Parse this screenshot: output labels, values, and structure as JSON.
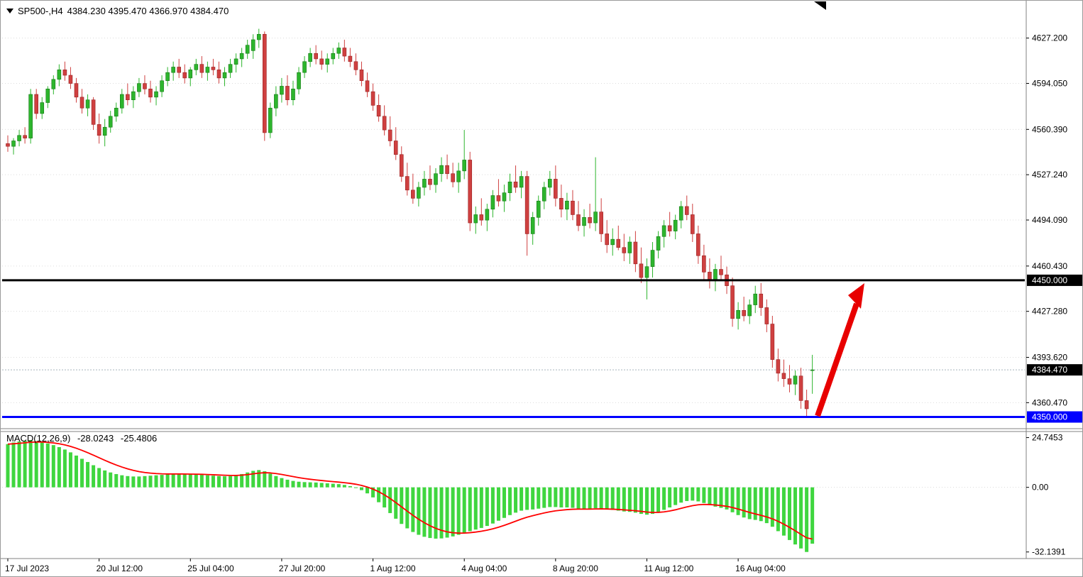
{
  "header": {
    "title": "SP500-,H4",
    "ohlc_text": "4384.230 4395.470 4366.970 4384.470"
  },
  "indicator": {
    "name": "MACD(12,26,9)",
    "main_value": "-28.0243",
    "signal_value": "-25.4806"
  },
  "colors": {
    "up_candle": "#2db52d",
    "up_candle_border": "#157a15",
    "down_candle": "#cf4040",
    "down_candle_border": "#992222",
    "macd_histogram": "#3fd63f",
    "macd_signal": "#ff0000",
    "resistance_line": "#000000",
    "support_line": "#0000ff",
    "current_price_line": "#a8b4bc",
    "arrow": "#e80000",
    "grid": "#dcdcdc",
    "axis_border": "#808080",
    "tag_text": "#ffffff"
  },
  "price_axis": {
    "ticks": [
      {
        "v": 4627.2,
        "label": "4627.200"
      },
      {
        "v": 4594.05,
        "label": "4594.050"
      },
      {
        "v": 4560.39,
        "label": "4560.390"
      },
      {
        "v": 4527.24,
        "label": "4527.240"
      },
      {
        "v": 4494.09,
        "label": "4494.090"
      },
      {
        "v": 4460.43,
        "label": "4460.430"
      },
      {
        "v": 4427.28,
        "label": "4427.280"
      },
      {
        "v": 4393.62,
        "label": "4393.620"
      },
      {
        "v": 4360.47,
        "label": "4360.470"
      }
    ]
  },
  "macd_axis": {
    "ticks": [
      {
        "v": 24.7453,
        "label": "24.7453"
      },
      {
        "v": 0,
        "label": "0.00"
      },
      {
        "v": -32.1391,
        "label": "-32.1391"
      }
    ]
  },
  "time_axis": {
    "labels": [
      "17 Jul 2023",
      "20 Jul 12:00",
      "25 Jul 04:00",
      "27 Jul 20:00",
      "1 Aug 12:00",
      "4 Aug 04:00",
      "8 Aug 20:00",
      "11 Aug 12:00",
      "16 Aug 04:00"
    ],
    "indices": [
      0,
      16,
      32,
      48,
      64,
      80,
      96,
      112,
      128
    ]
  },
  "chart_data": {
    "type": "candlestick+macd",
    "title": "SP500- H4 with MACD(12,26,9) and red up-arrow annotation toward 4450 resistance",
    "symbol": "SP500-",
    "timeframe": "H4",
    "ylim_main": [
      4343,
      4640
    ],
    "ylim_macd": [
      -34,
      26
    ],
    "grid": "horizontal-dotted",
    "legend_position": "none",
    "current_price": {
      "value": 4384.47,
      "label": "4384.470",
      "tag_bg": "#000000"
    },
    "levels": [
      {
        "price": 4450.0,
        "label": "4450.000",
        "color": "#000000",
        "width": 3
      },
      {
        "price": 4350.0,
        "label": "4350.000",
        "color": "#0000ff",
        "width": 3
      }
    ],
    "annotation": {
      "type": "arrow-up-right",
      "color": "#e80000",
      "meaning": "projected bounce from 4350 support toward 4450"
    },
    "candles": [
      [
        4550,
        4556,
        4544,
        4548
      ],
      [
        4548,
        4554,
        4542,
        4552
      ],
      [
        4552,
        4560,
        4548,
        4556
      ],
      [
        4556,
        4562,
        4550,
        4554
      ],
      [
        4554,
        4590,
        4550,
        4586
      ],
      [
        4586,
        4590,
        4568,
        4572
      ],
      [
        4572,
        4584,
        4568,
        4580
      ],
      [
        4580,
        4592,
        4576,
        4590
      ],
      [
        4590,
        4600,
        4586,
        4597
      ],
      [
        4597,
        4608,
        4592,
        4604
      ],
      [
        4604,
        4610,
        4596,
        4600
      ],
      [
        4600,
        4606,
        4590,
        4594
      ],
      [
        4594,
        4598,
        4580,
        4584
      ],
      [
        4584,
        4590,
        4572,
        4576
      ],
      [
        4576,
        4586,
        4570,
        4582
      ],
      [
        4582,
        4584,
        4560,
        4564
      ],
      [
        4564,
        4572,
        4550,
        4556
      ],
      [
        4556,
        4568,
        4548,
        4562
      ],
      [
        4562,
        4574,
        4558,
        4570
      ],
      [
        4570,
        4580,
        4566,
        4576
      ],
      [
        4576,
        4590,
        4572,
        4586
      ],
      [
        4586,
        4594,
        4578,
        4582
      ],
      [
        4582,
        4592,
        4576,
        4588
      ],
      [
        4588,
        4598,
        4584,
        4594
      ],
      [
        4594,
        4600,
        4586,
        4590
      ],
      [
        4590,
        4596,
        4580,
        4584
      ],
      [
        4584,
        4592,
        4578,
        4588
      ],
      [
        4588,
        4600,
        4584,
        4596
      ],
      [
        4596,
        4606,
        4592,
        4602
      ],
      [
        4602,
        4610,
        4596,
        4606
      ],
      [
        4606,
        4612,
        4598,
        4602
      ],
      [
        4602,
        4608,
        4594,
        4598
      ],
      [
        4598,
        4606,
        4592,
        4604
      ],
      [
        4604,
        4612,
        4600,
        4608
      ],
      [
        4608,
        4614,
        4598,
        4602
      ],
      [
        4602,
        4610,
        4596,
        4606
      ],
      [
        4606,
        4612,
        4600,
        4604
      ],
      [
        4604,
        4610,
        4594,
        4598
      ],
      [
        4598,
        4606,
        4592,
        4602
      ],
      [
        4602,
        4612,
        4598,
        4608
      ],
      [
        4608,
        4616,
        4602,
        4612
      ],
      [
        4612,
        4620,
        4606,
        4616
      ],
      [
        4616,
        4626,
        4612,
        4622
      ],
      [
        4618,
        4630,
        4612,
        4626
      ],
      [
        4626,
        4634,
        4620,
        4630
      ],
      [
        4630,
        4632,
        4552,
        4558
      ],
      [
        4558,
        4580,
        4554,
        4576
      ],
      [
        4576,
        4592,
        4570,
        4586
      ],
      [
        4586,
        4598,
        4580,
        4592
      ],
      [
        4592,
        4600,
        4578,
        4582
      ],
      [
        4582,
        4596,
        4578,
        4590
      ],
      [
        4590,
        4606,
        4586,
        4602
      ],
      [
        4602,
        4614,
        4598,
        4610
      ],
      [
        4610,
        4620,
        4606,
        4616
      ],
      [
        4616,
        4622,
        4608,
        4612
      ],
      [
        4612,
        4618,
        4604,
        4608
      ],
      [
        4608,
        4616,
        4602,
        4612
      ],
      [
        4612,
        4620,
        4608,
        4616
      ],
      [
        4616,
        4624,
        4612,
        4620
      ],
      [
        4620,
        4626,
        4610,
        4614
      ],
      [
        4614,
        4620,
        4606,
        4610
      ],
      [
        4610,
        4616,
        4600,
        4604
      ],
      [
        4604,
        4610,
        4592,
        4596
      ],
      [
        4596,
        4602,
        4584,
        4588
      ],
      [
        4588,
        4594,
        4574,
        4578
      ],
      [
        4578,
        4586,
        4566,
        4570
      ],
      [
        4570,
        4578,
        4556,
        4560
      ],
      [
        4560,
        4570,
        4548,
        4552
      ],
      [
        4552,
        4562,
        4538,
        4542
      ],
      [
        4542,
        4548,
        4522,
        4526
      ],
      [
        4526,
        4536,
        4512,
        4516
      ],
      [
        4516,
        4528,
        4506,
        4510
      ],
      [
        4510,
        4522,
        4504,
        4518
      ],
      [
        4518,
        4530,
        4512,
        4524
      ],
      [
        4524,
        4534,
        4516,
        4520
      ],
      [
        4520,
        4532,
        4514,
        4528
      ],
      [
        4528,
        4540,
        4522,
        4534
      ],
      [
        4534,
        4542,
        4524,
        4528
      ],
      [
        4528,
        4536,
        4518,
        4522
      ],
      [
        4522,
        4536,
        4514,
        4530
      ],
      [
        4530,
        4560,
        4524,
        4538
      ],
      [
        4538,
        4544,
        4486,
        4492
      ],
      [
        4492,
        4504,
        4484,
        4498
      ],
      [
        4498,
        4510,
        4490,
        4494
      ],
      [
        4494,
        4506,
        4486,
        4502
      ],
      [
        4502,
        4516,
        4496,
        4512
      ],
      [
        4512,
        4524,
        4504,
        4508
      ],
      [
        4508,
        4520,
        4500,
        4514
      ],
      [
        4514,
        4528,
        4508,
        4522
      ],
      [
        4522,
        4534,
        4514,
        4518
      ],
      [
        4518,
        4530,
        4510,
        4526
      ],
      [
        4526,
        4530,
        4468,
        4484
      ],
      [
        4484,
        4500,
        4476,
        4496
      ],
      [
        4496,
        4512,
        4490,
        4508
      ],
      [
        4508,
        4522,
        4502,
        4518
      ],
      [
        4518,
        4530,
        4512,
        4524
      ],
      [
        4524,
        4534,
        4504,
        4510
      ],
      [
        4510,
        4520,
        4496,
        4502
      ],
      [
        4502,
        4514,
        4494,
        4508
      ],
      [
        4508,
        4516,
        4494,
        4498
      ],
      [
        4498,
        4508,
        4486,
        4490
      ],
      [
        4490,
        4502,
        4482,
        4496
      ],
      [
        4496,
        4506,
        4488,
        4492
      ],
      [
        4492,
        4540,
        4486,
        4500
      ],
      [
        4500,
        4510,
        4478,
        4484
      ],
      [
        4484,
        4494,
        4470,
        4476
      ],
      [
        4476,
        4488,
        4468,
        4480
      ],
      [
        4480,
        4490,
        4472,
        4474
      ],
      [
        4474,
        4484,
        4464,
        4470
      ],
      [
        4470,
        4482,
        4462,
        4478
      ],
      [
        4478,
        4486,
        4456,
        4462
      ],
      [
        4462,
        4474,
        4448,
        4452
      ],
      [
        4452,
        4466,
        4436,
        4460
      ],
      [
        4460,
        4478,
        4452,
        4472
      ],
      [
        4472,
        4486,
        4466,
        4482
      ],
      [
        4482,
        4494,
        4474,
        4490
      ],
      [
        4490,
        4500,
        4482,
        4486
      ],
      [
        4486,
        4498,
        4480,
        4494
      ],
      [
        4494,
        4508,
        4488,
        4504
      ],
      [
        4504,
        4512,
        4494,
        4498
      ],
      [
        4498,
        4506,
        4478,
        4484
      ],
      [
        4484,
        4490,
        4462,
        4468
      ],
      [
        4468,
        4476,
        4450,
        4456
      ],
      [
        4456,
        4466,
        4444,
        4450
      ],
      [
        4450,
        4462,
        4442,
        4458
      ],
      [
        4458,
        4468,
        4450,
        4454
      ],
      [
        4454,
        4460,
        4440,
        4446
      ],
      [
        4446,
        4452,
        4416,
        4422
      ],
      [
        4422,
        4434,
        4414,
        4428
      ],
      [
        4428,
        4438,
        4420,
        4424
      ],
      [
        4424,
        4436,
        4418,
        4432
      ],
      [
        4432,
        4446,
        4426,
        4440
      ],
      [
        4440,
        4448,
        4424,
        4430
      ],
      [
        4430,
        4436,
        4412,
        4418
      ],
      [
        4418,
        4424,
        4386,
        4392
      ],
      [
        4392,
        4400,
        4376,
        4382
      ],
      [
        4382,
        4392,
        4372,
        4378
      ],
      [
        4378,
        4388,
        4368,
        4374
      ],
      [
        4374,
        4384,
        4366,
        4380
      ],
      [
        4380,
        4386,
        4356,
        4362
      ],
      [
        4362,
        4370,
        4350,
        4356
      ],
      [
        4384.23,
        4395.47,
        4366.97,
        4384.47
      ]
    ],
    "macd_histogram": [
      21.5,
      22.3,
      22.8,
      23.2,
      23.5,
      23.0,
      22.4,
      21.8,
      21.0,
      20.0,
      18.8,
      17.4,
      15.8,
      14.2,
      12.6,
      11.0,
      9.6,
      8.4,
      7.4,
      6.6,
      6.0,
      5.6,
      5.4,
      5.4,
      5.6,
      5.8,
      6.0,
      6.2,
      6.4,
      6.6,
      6.7,
      6.6,
      6.4,
      6.3,
      6.2,
      6.0,
      5.8,
      5.6,
      5.5,
      5.6,
      6.0,
      6.6,
      7.4,
      8.2,
      8.6,
      8.0,
      6.8,
      5.6,
      4.6,
      3.8,
      3.2,
      2.8,
      2.6,
      2.5,
      2.4,
      2.2,
      2.0,
      1.8,
      1.6,
      1.2,
      0.6,
      -0.2,
      -1.4,
      -3.0,
      -5.0,
      -7.4,
      -10.0,
      -12.8,
      -15.6,
      -18.2,
      -20.4,
      -22.2,
      -23.6,
      -24.6,
      -25.2,
      -25.5,
      -25.4,
      -25.0,
      -24.4,
      -23.6,
      -22.6,
      -21.8,
      -21.0,
      -20.2,
      -19.2,
      -18.0,
      -16.6,
      -15.2,
      -13.8,
      -12.6,
      -11.6,
      -11.2,
      -11.0,
      -10.6,
      -10.2,
      -9.8,
      -9.8,
      -10.0,
      -10.0,
      -10.2,
      -10.6,
      -10.8,
      -10.8,
      -10.4,
      -10.6,
      -11.0,
      -11.2,
      -11.6,
      -12.0,
      -12.2,
      -12.6,
      -13.2,
      -13.6,
      -13.2,
      -12.4,
      -11.2,
      -10.0,
      -8.8,
      -7.6,
      -6.8,
      -6.6,
      -7.0,
      -7.8,
      -8.8,
      -9.6,
      -10.2,
      -11.0,
      -12.4,
      -13.8,
      -15.0,
      -15.8,
      -16.2,
      -16.8,
      -17.8,
      -19.6,
      -21.8,
      -24.0,
      -26.2,
      -28.4,
      -30.4,
      -32.1391,
      -28.0243
    ],
    "macd_signal_last": -25.4806,
    "macd_main_last": -28.0243
  }
}
